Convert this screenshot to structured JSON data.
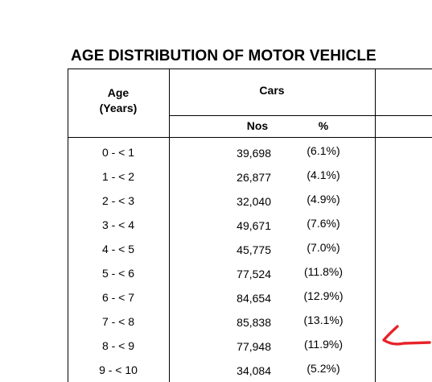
{
  "title": "AGE DISTRIBUTION OF MOTOR VEHICLE",
  "header": {
    "age": "Age",
    "age_unit": "(Years)",
    "cars": "Cars",
    "nos": "Nos",
    "pct": "%"
  },
  "rows": [
    {
      "age": "0 - < 1",
      "nos": "39,698",
      "pct": "(6.1%)"
    },
    {
      "age": "1 - < 2",
      "nos": "26,877",
      "pct": "(4.1%)"
    },
    {
      "age": "2 - < 3",
      "nos": "32,040",
      "pct": "(4.9%)"
    },
    {
      "age": "3 - < 4",
      "nos": "49,671",
      "pct": "(7.6%)"
    },
    {
      "age": "4 - < 5",
      "nos": "45,775",
      "pct": "(7.0%)"
    },
    {
      "age": "5 - < 6",
      "nos": "77,524",
      "pct": "(11.8%)"
    },
    {
      "age": "6 - < 7",
      "nos": "84,654",
      "pct": "(12.9%)"
    },
    {
      "age": "7 - < 8",
      "nos": "85,838",
      "pct": "(13.1%)"
    },
    {
      "age": "8 - < 9",
      "nos": "77,948",
      "pct": "(11.9%)"
    },
    {
      "age": "9 - < 10",
      "nos": "34,084",
      "pct": "(5.2%)"
    }
  ],
  "annotation": {
    "icon": "handwritten-arrow-icon",
    "color": "#e8232a"
  }
}
